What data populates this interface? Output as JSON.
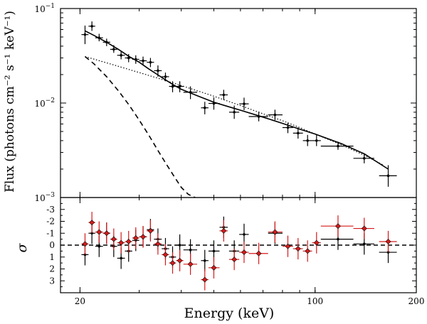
{
  "chart_data": [
    {
      "type": "scatter",
      "panel": "top",
      "ylabel": "Flux (photons cm⁻² s⁻¹ keV⁻¹)",
      "xlabel": "Energy (keV)",
      "xscale": "log",
      "yscale": "log",
      "xlim": [
        17.5,
        200
      ],
      "ylim": [
        0.001,
        0.1
      ],
      "x_ticks": [
        {
          "value": 20,
          "label": "20"
        },
        {
          "value": 100,
          "label": "100"
        },
        {
          "value": 200,
          "label": "200"
        }
      ],
      "y_ticks": [
        {
          "value": 0.001,
          "base": "10",
          "exp": "−3"
        },
        {
          "value": 0.01,
          "base": "10",
          "exp": "−2"
        },
        {
          "value": 0.1,
          "base": "10",
          "exp": "−1"
        }
      ],
      "data": [
        {
          "x": 20.7,
          "xlo": 20.2,
          "xhi": 21.2,
          "y": 0.053,
          "ylo": 0.042,
          "yhi": 0.066
        },
        {
          "x": 21.7,
          "xlo": 21.2,
          "xhi": 22.2,
          "y": 0.065,
          "ylo": 0.058,
          "yhi": 0.073
        },
        {
          "x": 22.8,
          "xlo": 22.2,
          "xhi": 23.4,
          "y": 0.049,
          "ylo": 0.045,
          "yhi": 0.054
        },
        {
          "x": 24.0,
          "xlo": 23.4,
          "xhi": 24.6,
          "y": 0.044,
          "ylo": 0.04,
          "yhi": 0.048
        },
        {
          "x": 25.2,
          "xlo": 24.6,
          "xhi": 25.8,
          "y": 0.037,
          "ylo": 0.034,
          "yhi": 0.041
        },
        {
          "x": 26.5,
          "xlo": 25.8,
          "xhi": 27.2,
          "y": 0.032,
          "ylo": 0.029,
          "yhi": 0.035
        },
        {
          "x": 27.9,
          "xlo": 27.2,
          "xhi": 28.6,
          "y": 0.03,
          "ylo": 0.027,
          "yhi": 0.033
        },
        {
          "x": 29.3,
          "xlo": 28.6,
          "xhi": 30.0,
          "y": 0.029,
          "ylo": 0.026,
          "yhi": 0.032
        },
        {
          "x": 30.8,
          "xlo": 30.0,
          "xhi": 31.6,
          "y": 0.028,
          "ylo": 0.025,
          "yhi": 0.031
        },
        {
          "x": 32.4,
          "xlo": 31.6,
          "xhi": 33.2,
          "y": 0.027,
          "ylo": 0.024,
          "yhi": 0.03
        },
        {
          "x": 34.1,
          "xlo": 33.2,
          "xhi": 35.0,
          "y": 0.022,
          "ylo": 0.019,
          "yhi": 0.025
        },
        {
          "x": 35.9,
          "xlo": 35.0,
          "xhi": 36.8,
          "y": 0.019,
          "ylo": 0.017,
          "yhi": 0.021
        },
        {
          "x": 37.7,
          "xlo": 36.8,
          "xhi": 38.6,
          "y": 0.015,
          "ylo": 0.013,
          "yhi": 0.017
        },
        {
          "x": 39.6,
          "xlo": 38.6,
          "xhi": 40.6,
          "y": 0.015,
          "ylo": 0.013,
          "yhi": 0.017
        },
        {
          "x": 42.6,
          "xlo": 40.6,
          "xhi": 44.6,
          "y": 0.013,
          "ylo": 0.011,
          "yhi": 0.015
        },
        {
          "x": 47.0,
          "xlo": 45.8,
          "xhi": 48.2,
          "y": 0.0089,
          "ylo": 0.0076,
          "yhi": 0.0103
        },
        {
          "x": 50.0,
          "xlo": 48.2,
          "xhi": 52.0,
          "y": 0.0099,
          "ylo": 0.0085,
          "yhi": 0.0115
        },
        {
          "x": 53.5,
          "xlo": 52.0,
          "xhi": 55.0,
          "y": 0.0122,
          "ylo": 0.0108,
          "yhi": 0.0138
        },
        {
          "x": 57.5,
          "xlo": 55.5,
          "xhi": 59.5,
          "y": 0.008,
          "ylo": 0.0068,
          "yhi": 0.0094
        },
        {
          "x": 61.5,
          "xlo": 59.5,
          "xhi": 63.5,
          "y": 0.0098,
          "ylo": 0.0084,
          "yhi": 0.0114
        },
        {
          "x": 68.0,
          "xlo": 63.5,
          "xhi": 72.5,
          "y": 0.0072,
          "ylo": 0.0064,
          "yhi": 0.0081
        },
        {
          "x": 76.0,
          "xlo": 72.5,
          "xhi": 80.0,
          "y": 0.0075,
          "ylo": 0.0066,
          "yhi": 0.0085
        },
        {
          "x": 83.0,
          "xlo": 80.0,
          "xhi": 86.0,
          "y": 0.0055,
          "ylo": 0.0048,
          "yhi": 0.0062
        },
        {
          "x": 89.0,
          "xlo": 86.0,
          "xhi": 92.0,
          "y": 0.0048,
          "ylo": 0.0042,
          "yhi": 0.0055
        },
        {
          "x": 95.0,
          "xlo": 92.0,
          "xhi": 98.0,
          "y": 0.004,
          "ylo": 0.0035,
          "yhi": 0.0046
        },
        {
          "x": 101.0,
          "xlo": 98.0,
          "xhi": 104.0,
          "y": 0.004,
          "ylo": 0.0035,
          "yhi": 0.0046
        },
        {
          "x": 117.0,
          "xlo": 104.0,
          "xhi": 130.0,
          "y": 0.0035,
          "ylo": 0.0032,
          "yhi": 0.0039
        },
        {
          "x": 140.0,
          "xlo": 130.0,
          "xhi": 150.0,
          "y": 0.0026,
          "ylo": 0.0023,
          "yhi": 0.0029
        },
        {
          "x": 165.0,
          "xlo": 155.0,
          "xhi": 175.0,
          "y": 0.0017,
          "ylo": 0.0013,
          "yhi": 0.0022
        }
      ],
      "models": [
        {
          "name": "total",
          "style": "solid",
          "x": [
            20.7,
            22,
            24,
            26,
            28,
            30,
            32,
            34,
            36,
            38,
            40,
            45,
            50,
            55,
            60,
            70,
            80,
            90,
            100,
            120,
            140,
            165
          ],
          "y": [
            0.058,
            0.052,
            0.044,
            0.037,
            0.031,
            0.027,
            0.023,
            0.02,
            0.0175,
            0.0155,
            0.014,
            0.0118,
            0.0102,
            0.0092,
            0.0084,
            0.0071,
            0.0061,
            0.0053,
            0.0047,
            0.0037,
            0.0029,
            0.002
          ]
        },
        {
          "name": "power-law",
          "style": "dotted",
          "x": [
            20.7,
            25,
            30,
            35,
            40,
            50,
            60,
            70,
            80,
            90,
            100,
            120,
            140,
            160
          ],
          "y": [
            0.031,
            0.0255,
            0.021,
            0.0178,
            0.0153,
            0.0118,
            0.0094,
            0.0077,
            0.0065,
            0.0055,
            0.0047,
            0.0036,
            0.0028,
            0.0022
          ]
        },
        {
          "name": "thermal",
          "style": "dashed",
          "x": [
            20.7,
            22,
            24,
            26,
            28,
            30,
            32,
            34,
            36,
            38,
            40,
            42,
            44.5
          ],
          "y": [
            0.031,
            0.026,
            0.019,
            0.0135,
            0.0095,
            0.0066,
            0.0046,
            0.0032,
            0.0023,
            0.0017,
            0.00128,
            0.00108,
            0.00098
          ]
        }
      ]
    },
    {
      "type": "scatter",
      "panel": "bottom",
      "ylabel": "σ",
      "xlabel": "Energy (keV)",
      "xscale": "log",
      "xlim": [
        17.5,
        200
      ],
      "ylim": [
        -4,
        4
      ],
      "y_inverted": true,
      "y_ticks": [
        {
          "value": -3,
          "label": "-3"
        },
        {
          "value": -2,
          "label": "-2"
        },
        {
          "value": -1,
          "label": "-1"
        },
        {
          "value": 0,
          "label": "0"
        },
        {
          "value": 1,
          "label": "1"
        },
        {
          "value": 2,
          "label": "2"
        },
        {
          "value": 3,
          "label": "3"
        }
      ],
      "zero_line": 0,
      "series": [
        {
          "name": "black",
          "color": "#000000",
          "points": [
            {
              "x": 20.7,
              "xlo": 20.2,
              "xhi": 21.2,
              "y": 0.8,
              "err": 0.9
            },
            {
              "x": 21.7,
              "xlo": 21.2,
              "xhi": 22.2,
              "y": -1.0,
              "err": 0.9
            },
            {
              "x": 22.8,
              "xlo": 22.2,
              "xhi": 23.4,
              "y": 0.1,
              "err": 0.9
            },
            {
              "x": 24.0,
              "xlo": 23.4,
              "xhi": 24.6,
              "y": -1.0,
              "err": 0.9
            },
            {
              "x": 25.2,
              "xlo": 24.6,
              "xhi": 25.8,
              "y": 0.1,
              "err": 0.9
            },
            {
              "x": 26.5,
              "xlo": 25.8,
              "xhi": 27.2,
              "y": 1.1,
              "err": 0.9
            },
            {
              "x": 27.9,
              "xlo": 27.2,
              "xhi": 28.6,
              "y": 0.5,
              "err": 0.9
            },
            {
              "x": 29.3,
              "xlo": 28.6,
              "xhi": 30.0,
              "y": -0.4,
              "err": 0.9
            },
            {
              "x": 30.8,
              "xlo": 30.0,
              "xhi": 31.6,
              "y": -0.7,
              "err": 0.9
            },
            {
              "x": 32.4,
              "xlo": 31.6,
              "xhi": 33.2,
              "y": -1.3,
              "err": 0.9
            },
            {
              "x": 34.1,
              "xlo": 33.2,
              "xhi": 35.0,
              "y": -0.5,
              "err": 0.9
            },
            {
              "x": 35.9,
              "xlo": 35.0,
              "xhi": 36.8,
              "y": 0.3,
              "err": 0.9
            },
            {
              "x": 37.7,
              "xlo": 36.8,
              "xhi": 38.6,
              "y": 1.0,
              "err": 0.9
            },
            {
              "x": 39.6,
              "xlo": 38.6,
              "xhi": 40.6,
              "y": 0.0,
              "err": 0.9
            },
            {
              "x": 42.6,
              "xlo": 40.6,
              "xhi": 44.6,
              "y": 0.4,
              "err": 0.9
            },
            {
              "x": 47.0,
              "xlo": 45.8,
              "xhi": 48.2,
              "y": 1.3,
              "err": 0.9
            },
            {
              "x": 50.0,
              "xlo": 48.2,
              "xhi": 52.0,
              "y": 0.5,
              "err": 0.9
            },
            {
              "x": 53.5,
              "xlo": 52.0,
              "xhi": 55.0,
              "y": -1.5,
              "err": 0.9
            },
            {
              "x": 57.5,
              "xlo": 55.5,
              "xhi": 59.5,
              "y": 0.5,
              "err": 0.9
            },
            {
              "x": 61.5,
              "xlo": 59.5,
              "xhi": 63.5,
              "y": -0.9,
              "err": 0.9
            },
            {
              "x": 76.0,
              "xlo": 72.5,
              "xhi": 80.0,
              "y": -1.0,
              "err": 0.9
            },
            {
              "x": 117.0,
              "xlo": 104.0,
              "xhi": 130.0,
              "y": -0.5,
              "err": 0.9
            },
            {
              "x": 140.0,
              "xlo": 130.0,
              "xhi": 150.0,
              "y": -0.1,
              "err": 0.9
            },
            {
              "x": 165.0,
              "xlo": 155.0,
              "xhi": 175.0,
              "y": 0.6,
              "err": 0.9
            }
          ]
        },
        {
          "name": "red",
          "color": "#d61a1a",
          "points": [
            {
              "x": 20.7,
              "xlo": 20.2,
              "xhi": 21.2,
              "y": -0.1,
              "err": 0.9
            },
            {
              "x": 21.7,
              "xlo": 21.2,
              "xhi": 22.2,
              "y": -1.9,
              "err": 0.9
            },
            {
              "x": 22.8,
              "xlo": 22.2,
              "xhi": 23.4,
              "y": -1.1,
              "err": 0.9
            },
            {
              "x": 24.0,
              "xlo": 23.4,
              "xhi": 24.6,
              "y": -1.0,
              "err": 0.9
            },
            {
              "x": 25.2,
              "xlo": 24.6,
              "xhi": 25.8,
              "y": -0.5,
              "err": 0.9
            },
            {
              "x": 26.5,
              "xlo": 25.8,
              "xhi": 27.2,
              "y": -0.2,
              "err": 0.9
            },
            {
              "x": 27.9,
              "xlo": 27.2,
              "xhi": 28.6,
              "y": -0.3,
              "err": 0.9
            },
            {
              "x": 29.3,
              "xlo": 28.6,
              "xhi": 30.0,
              "y": -0.6,
              "err": 0.9
            },
            {
              "x": 30.8,
              "xlo": 30.0,
              "xhi": 31.6,
              "y": -0.7,
              "err": 0.9
            },
            {
              "x": 32.4,
              "xlo": 31.6,
              "xhi": 33.2,
              "y": -1.2,
              "err": 0.9
            },
            {
              "x": 34.1,
              "xlo": 33.2,
              "xhi": 35.0,
              "y": -0.1,
              "err": 0.9
            },
            {
              "x": 35.9,
              "xlo": 35.0,
              "xhi": 36.8,
              "y": 0.8,
              "err": 0.9
            },
            {
              "x": 37.7,
              "xlo": 36.8,
              "xhi": 38.6,
              "y": 1.5,
              "err": 0.9
            },
            {
              "x": 39.6,
              "xlo": 38.6,
              "xhi": 40.6,
              "y": 1.3,
              "err": 0.9
            },
            {
              "x": 42.6,
              "xlo": 40.6,
              "xhi": 44.6,
              "y": 1.6,
              "err": 0.9
            },
            {
              "x": 47.0,
              "xlo": 45.8,
              "xhi": 48.2,
              "y": 2.9,
              "err": 0.9
            },
            {
              "x": 50.0,
              "xlo": 48.2,
              "xhi": 52.0,
              "y": 1.9,
              "err": 0.9
            },
            {
              "x": 53.5,
              "xlo": 52.0,
              "xhi": 55.0,
              "y": -1.2,
              "err": 0.9
            },
            {
              "x": 57.5,
              "xlo": 55.5,
              "xhi": 59.5,
              "y": 1.2,
              "err": 0.9
            },
            {
              "x": 61.5,
              "xlo": 59.5,
              "xhi": 63.5,
              "y": 0.6,
              "err": 0.9
            },
            {
              "x": 68.0,
              "xlo": 63.5,
              "xhi": 72.5,
              "y": 0.7,
              "err": 0.9
            },
            {
              "x": 76.0,
              "xlo": 72.5,
              "xhi": 80.0,
              "y": -1.1,
              "err": 0.9
            },
            {
              "x": 83.0,
              "xlo": 80.0,
              "xhi": 86.0,
              "y": 0.1,
              "err": 0.9
            },
            {
              "x": 89.0,
              "xlo": 86.0,
              "xhi": 92.0,
              "y": 0.3,
              "err": 0.9
            },
            {
              "x": 95.0,
              "xlo": 92.0,
              "xhi": 98.0,
              "y": 0.5,
              "err": 0.9
            },
            {
              "x": 101.0,
              "xlo": 98.0,
              "xhi": 104.0,
              "y": -0.2,
              "err": 0.9
            },
            {
              "x": 117.0,
              "xlo": 104.0,
              "xhi": 130.0,
              "y": -1.6,
              "err": 0.9
            },
            {
              "x": 140.0,
              "xlo": 130.0,
              "xhi": 150.0,
              "y": -1.4,
              "err": 0.9
            },
            {
              "x": 165.0,
              "xlo": 155.0,
              "xhi": 175.0,
              "y": -0.3,
              "err": 0.9
            }
          ]
        }
      ]
    }
  ]
}
